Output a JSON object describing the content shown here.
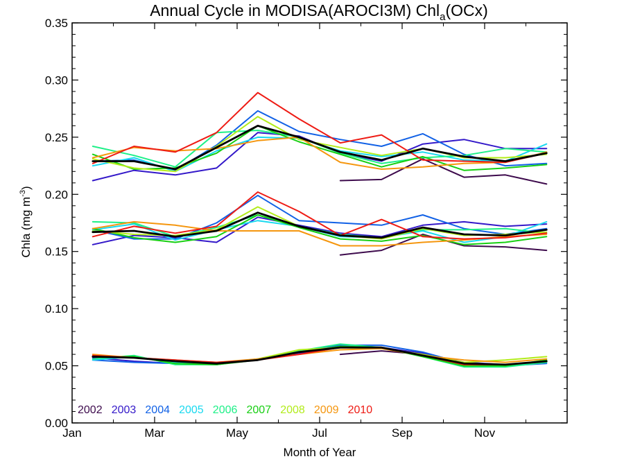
{
  "chart_data": {
    "type": "line",
    "title_main": "Annual Cycle in MODISA(AROCI3M) Chl",
    "title_sub": "a",
    "title_tail": "(OCx)",
    "xlabel": "Month of Year",
    "ylabel_main": "Chla (mg m",
    "ylabel_sup": "-3",
    "ylabel_tail": ")",
    "xlim": [
      0,
      12
    ],
    "ylim": [
      0,
      0.35
    ],
    "x_ticks": [
      {
        "value": 0,
        "label": "Jan"
      },
      {
        "value": 2,
        "label": "Mar"
      },
      {
        "value": 4,
        "label": "May"
      },
      {
        "value": 6,
        "label": "Jul"
      },
      {
        "value": 8,
        "label": "Sep"
      },
      {
        "value": 10,
        "label": "Nov"
      }
    ],
    "y_ticks": [
      {
        "value": 0.0,
        "label": "0.00"
      },
      {
        "value": 0.05,
        "label": "0.05"
      },
      {
        "value": 0.1,
        "label": "0.10"
      },
      {
        "value": 0.15,
        "label": "0.15"
      },
      {
        "value": 0.2,
        "label": "0.20"
      },
      {
        "value": 0.25,
        "label": "0.25"
      },
      {
        "value": 0.3,
        "label": "0.30"
      },
      {
        "value": 0.35,
        "label": "0.35"
      }
    ],
    "legend_position": "bottom-left",
    "x": [
      0.5,
      1.5,
      2.5,
      3.5,
      4.5,
      5.5,
      6.5,
      7.5,
      8.5,
      9.5,
      10.5,
      11.5
    ],
    "groups": [
      "upper",
      "middle",
      "lower"
    ],
    "series": [
      {
        "name": "2002",
        "color": "#3d0a4c",
        "upper": [
          null,
          null,
          null,
          null,
          null,
          null,
          0.212,
          0.213,
          0.231,
          0.215,
          0.217,
          0.209
        ],
        "middle": [
          null,
          null,
          null,
          null,
          null,
          null,
          0.147,
          0.151,
          0.165,
          0.155,
          0.154,
          0.151
        ],
        "lower": [
          null,
          null,
          null,
          null,
          null,
          null,
          0.06,
          0.063,
          0.06,
          0.052,
          0.051,
          0.054
        ]
      },
      {
        "name": "2003",
        "color": "#3318c9",
        "upper": [
          0.212,
          0.221,
          0.217,
          0.223,
          0.254,
          0.251,
          0.236,
          0.229,
          0.244,
          0.248,
          0.24,
          0.24
        ],
        "middle": [
          0.156,
          0.164,
          0.162,
          0.158,
          0.18,
          0.173,
          0.166,
          0.163,
          0.173,
          0.176,
          0.172,
          0.174
        ],
        "lower": [
          0.057,
          0.054,
          0.052,
          0.051,
          0.056,
          0.061,
          0.066,
          0.066,
          0.061,
          0.053,
          0.051,
          0.053
        ]
      },
      {
        "name": "2004",
        "color": "#1161e6",
        "upper": [
          0.229,
          0.23,
          0.221,
          0.243,
          0.273,
          0.255,
          0.248,
          0.242,
          0.253,
          0.235,
          0.225,
          0.227
        ],
        "middle": [
          0.169,
          0.161,
          0.161,
          0.175,
          0.199,
          0.177,
          0.175,
          0.173,
          0.182,
          0.17,
          0.165,
          0.17
        ],
        "lower": [
          0.055,
          0.053,
          0.052,
          0.051,
          0.056,
          0.062,
          0.068,
          0.068,
          0.062,
          0.052,
          0.05,
          0.052
        ]
      },
      {
        "name": "2005",
        "color": "#19d9f0",
        "upper": [
          0.225,
          0.232,
          0.22,
          0.238,
          0.25,
          0.249,
          0.238,
          0.233,
          0.237,
          0.23,
          0.229,
          0.244
        ],
        "middle": [
          0.169,
          0.174,
          0.16,
          0.169,
          0.177,
          0.172,
          0.163,
          0.162,
          0.168,
          0.158,
          0.163,
          0.176
        ],
        "lower": [
          0.055,
          0.058,
          0.053,
          0.051,
          0.056,
          0.062,
          0.067,
          0.066,
          0.059,
          0.051,
          0.051,
          0.053
        ]
      },
      {
        "name": "2006",
        "color": "#1ef088",
        "upper": [
          0.242,
          0.234,
          0.224,
          0.254,
          0.256,
          0.25,
          0.236,
          0.227,
          0.232,
          0.234,
          0.24,
          0.237
        ],
        "middle": [
          0.176,
          0.175,
          0.163,
          0.171,
          0.182,
          0.172,
          0.165,
          0.162,
          0.169,
          0.169,
          0.17,
          0.166
        ],
        "lower": [
          0.056,
          0.059,
          0.051,
          0.051,
          0.056,
          0.063,
          0.069,
          0.066,
          0.058,
          0.049,
          0.049,
          0.053
        ]
      },
      {
        "name": "2007",
        "color": "#17cf12",
        "upper": [
          0.235,
          0.222,
          0.223,
          0.236,
          0.26,
          0.246,
          0.235,
          0.224,
          0.233,
          0.221,
          0.223,
          0.226
        ],
        "middle": [
          0.17,
          0.162,
          0.158,
          0.163,
          0.182,
          0.171,
          0.161,
          0.159,
          0.164,
          0.156,
          0.158,
          0.163
        ],
        "lower": [
          0.058,
          0.058,
          0.052,
          0.051,
          0.055,
          0.062,
          0.067,
          0.066,
          0.058,
          0.05,
          0.05,
          0.055
        ]
      },
      {
        "name": "2008",
        "color": "#b2ec1a",
        "upper": [
          0.231,
          0.223,
          0.22,
          0.242,
          0.268,
          0.248,
          0.241,
          0.234,
          0.24,
          0.232,
          0.232,
          0.235
        ],
        "middle": [
          0.168,
          0.165,
          0.164,
          0.169,
          0.189,
          0.172,
          0.164,
          0.161,
          0.17,
          0.164,
          0.165,
          0.167
        ],
        "lower": [
          0.058,
          0.057,
          0.054,
          0.052,
          0.056,
          0.064,
          0.066,
          0.065,
          0.06,
          0.053,
          0.055,
          0.058
        ]
      },
      {
        "name": "2009",
        "color": "#f5960e",
        "upper": [
          0.232,
          0.241,
          0.238,
          0.24,
          0.247,
          0.25,
          0.228,
          0.222,
          0.224,
          0.227,
          0.228,
          0.237
        ],
        "middle": [
          0.17,
          0.176,
          0.173,
          0.168,
          0.168,
          0.168,
          0.155,
          0.155,
          0.158,
          0.16,
          0.163,
          0.165
        ],
        "lower": [
          0.06,
          0.057,
          0.055,
          0.053,
          0.056,
          0.06,
          0.064,
          0.065,
          0.059,
          0.055,
          0.053,
          0.056
        ]
      },
      {
        "name": "2010",
        "color": "#ee1b14",
        "upper": [
          0.227,
          0.242,
          0.237,
          0.254,
          0.289,
          0.266,
          0.245,
          0.252,
          0.23,
          0.229,
          0.228,
          0.236
        ],
        "middle": [
          0.163,
          0.172,
          0.166,
          0.172,
          0.202,
          0.185,
          0.164,
          0.178,
          0.163,
          0.161,
          0.162,
          0.166
        ],
        "lower": [
          0.059,
          0.057,
          0.055,
          0.053,
          0.055,
          0.06,
          0.066,
          0.066,
          0.059,
          0.051,
          0.051,
          0.054
        ]
      },
      {
        "name": "",
        "color": "#000000",
        "legend": false,
        "upper": [
          0.229,
          0.229,
          0.222,
          0.241,
          0.26,
          0.25,
          0.237,
          0.23,
          0.24,
          0.233,
          0.229,
          0.236
        ],
        "middle": [
          0.167,
          0.168,
          0.163,
          0.168,
          0.184,
          0.172,
          0.164,
          0.162,
          0.171,
          0.165,
          0.164,
          0.169
        ],
        "lower": [
          0.058,
          0.057,
          0.054,
          0.052,
          0.055,
          0.062,
          0.066,
          0.066,
          0.059,
          0.052,
          0.051,
          0.054
        ]
      }
    ]
  }
}
